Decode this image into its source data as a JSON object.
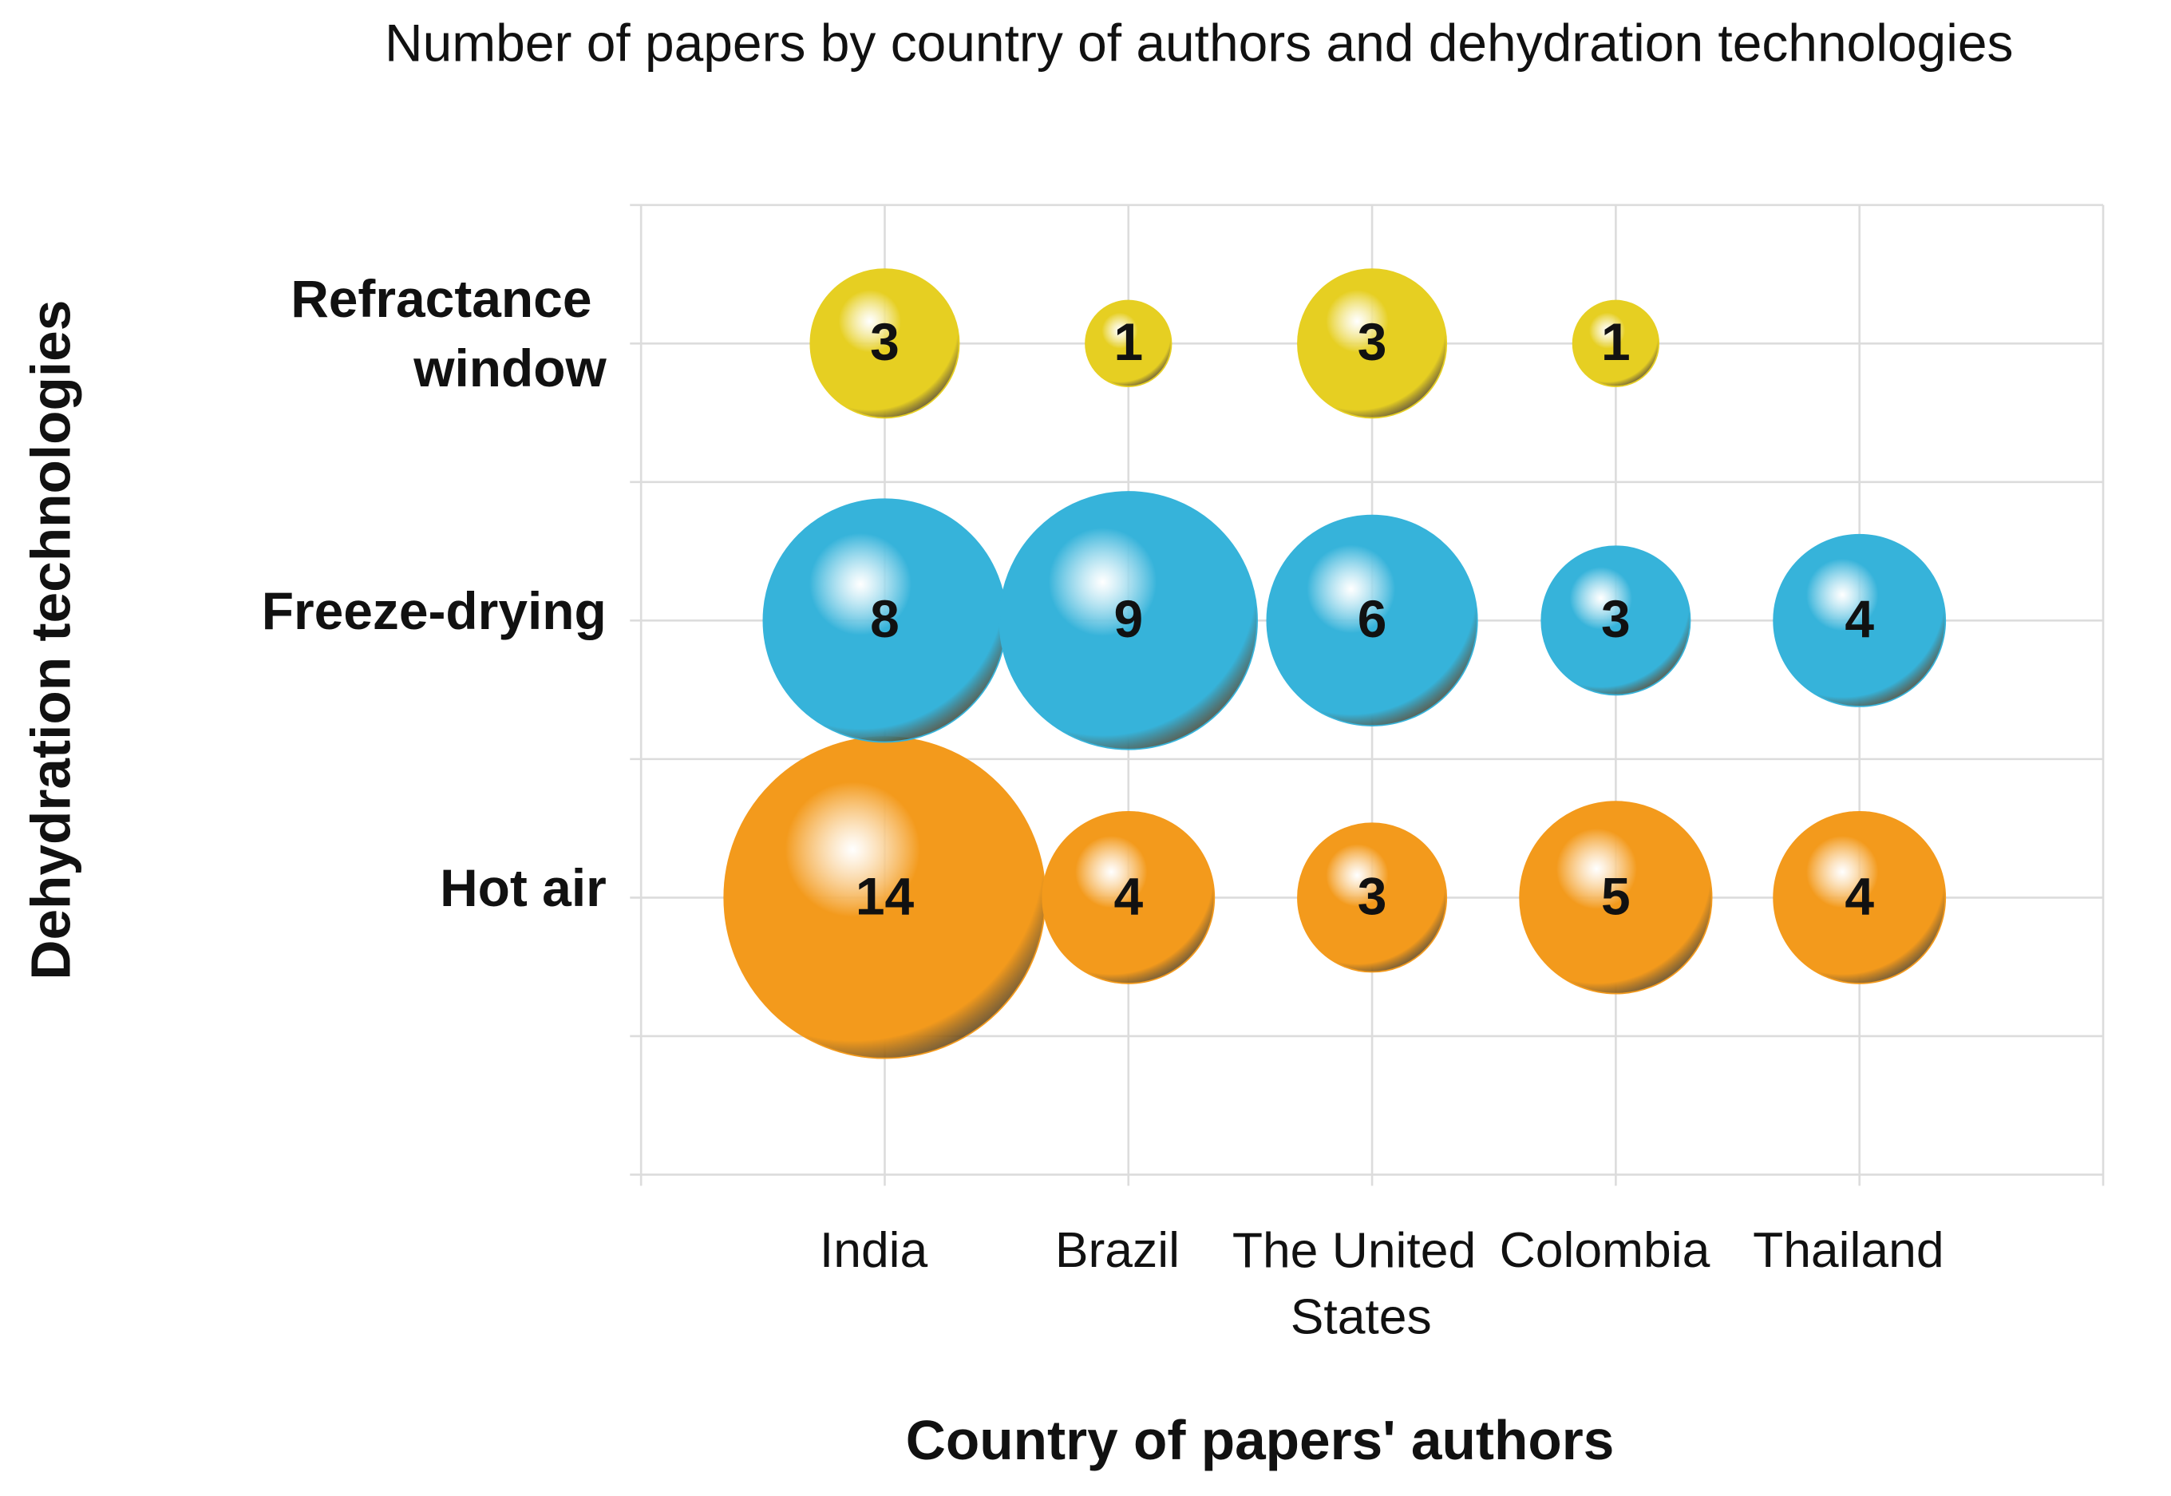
{
  "chart_data": {
    "type": "bubble",
    "title": "Number of papers by country of authors and dehydration technologies",
    "x_label": "Country of papers' authors",
    "y_label": "Dehydration technologies",
    "categories": [
      "India",
      "Brazil",
      "The United States",
      "Colombia",
      "Thailand"
    ],
    "series": [
      {
        "name": "Hot air",
        "color": "#f39a1c",
        "values": [
          14,
          4,
          3,
          5,
          4
        ]
      },
      {
        "name": "Freeze-drying",
        "color": "#36b3da",
        "values": [
          8,
          9,
          6,
          3,
          4
        ]
      },
      {
        "name": "Refractance window",
        "color": "#e6cf22",
        "values": [
          3,
          1,
          3,
          1,
          null
        ]
      }
    ],
    "grid": true
  }
}
